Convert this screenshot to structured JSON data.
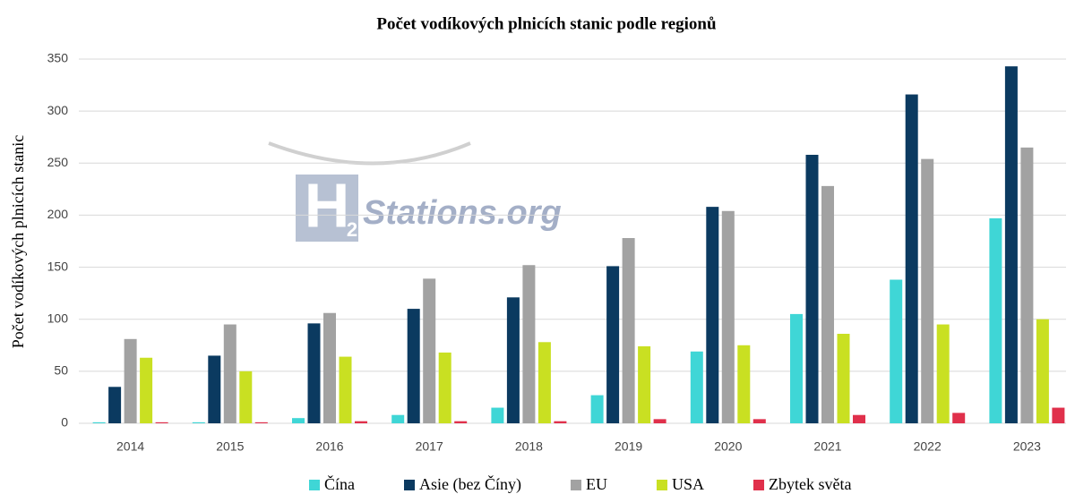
{
  "chart_data": {
    "type": "bar",
    "title": "Počet vodíkových plnicích stanic podle regionů",
    "y_label": "Počet vodíkových plnicích stanic",
    "watermark": [
      "H",
      "2",
      "Stations.org"
    ],
    "categories": [
      "2014",
      "2015",
      "2016",
      "2017",
      "2018",
      "2019",
      "2020",
      "2021",
      "2022",
      "2023"
    ],
    "series": [
      {
        "name": "Čína",
        "color": "#3fd6d6",
        "values": [
          1,
          1,
          5,
          8,
          15,
          27,
          69,
          105,
          138,
          197
        ]
      },
      {
        "name": "Asie (bez Číny)",
        "color": "#0b3a60",
        "values": [
          35,
          65,
          96,
          110,
          121,
          151,
          208,
          258,
          316,
          343
        ]
      },
      {
        "name": "EU",
        "color": "#a2a2a2",
        "values": [
          81,
          95,
          106,
          139,
          152,
          178,
          204,
          228,
          254,
          265
        ]
      },
      {
        "name": "USA",
        "color": "#c9e022",
        "values": [
          63,
          50,
          64,
          68,
          78,
          74,
          75,
          86,
          95,
          100
        ]
      },
      {
        "name": "Zbytek světa",
        "color": "#e0304b",
        "values": [
          1,
          1,
          2,
          2,
          2,
          4,
          4,
          8,
          10,
          15
        ]
      }
    ],
    "ylim": [
      0,
      350
    ],
    "yticks": [
      0,
      50,
      100,
      150,
      200,
      250,
      300,
      350
    ],
    "grid": true,
    "legend": "bottom"
  }
}
